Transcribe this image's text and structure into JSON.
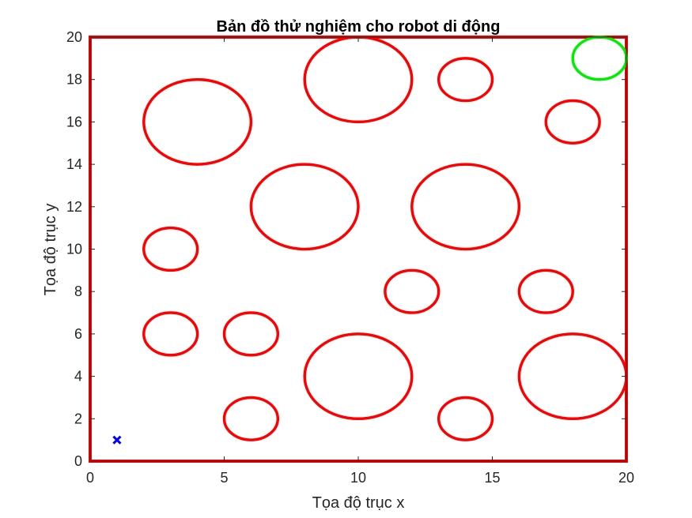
{
  "chart_data": {
    "type": "scatter",
    "title": "Bản đồ thử nghiệm cho robot di động",
    "xlabel": "Tọa độ trục x",
    "ylabel": "Tọa độ trục y",
    "xlim": [
      0,
      20
    ],
    "ylim": [
      0,
      20
    ],
    "xticks": [
      0,
      5,
      10,
      15,
      20
    ],
    "yticks": [
      0,
      2,
      4,
      6,
      8,
      10,
      12,
      14,
      16,
      18,
      20
    ],
    "grid": false,
    "boundary": {
      "xmin": 0,
      "xmax": 20,
      "ymin": 0,
      "ymax": 20,
      "color": "#ff0000"
    },
    "start": {
      "x": 1,
      "y": 1,
      "marker": "x",
      "color": "#0000ff"
    },
    "goal": {
      "x": 19,
      "y": 19,
      "r": 1,
      "color": "#00ee00"
    },
    "obstacle_color": "#ff0000",
    "obstacles": [
      {
        "x": 4,
        "y": 16,
        "r": 2
      },
      {
        "x": 10,
        "y": 18,
        "r": 2
      },
      {
        "x": 14,
        "y": 18,
        "r": 1
      },
      {
        "x": 18,
        "y": 16,
        "r": 1
      },
      {
        "x": 8,
        "y": 12,
        "r": 2
      },
      {
        "x": 14,
        "y": 12,
        "r": 2
      },
      {
        "x": 3,
        "y": 10,
        "r": 1
      },
      {
        "x": 12,
        "y": 8,
        "r": 1
      },
      {
        "x": 17,
        "y": 8,
        "r": 1
      },
      {
        "x": 3,
        "y": 6,
        "r": 1
      },
      {
        "x": 6,
        "y": 6,
        "r": 1
      },
      {
        "x": 10,
        "y": 4,
        "r": 2
      },
      {
        "x": 18,
        "y": 4,
        "r": 2
      },
      {
        "x": 6,
        "y": 2,
        "r": 1
      },
      {
        "x": 14,
        "y": 2,
        "r": 1
      }
    ]
  }
}
